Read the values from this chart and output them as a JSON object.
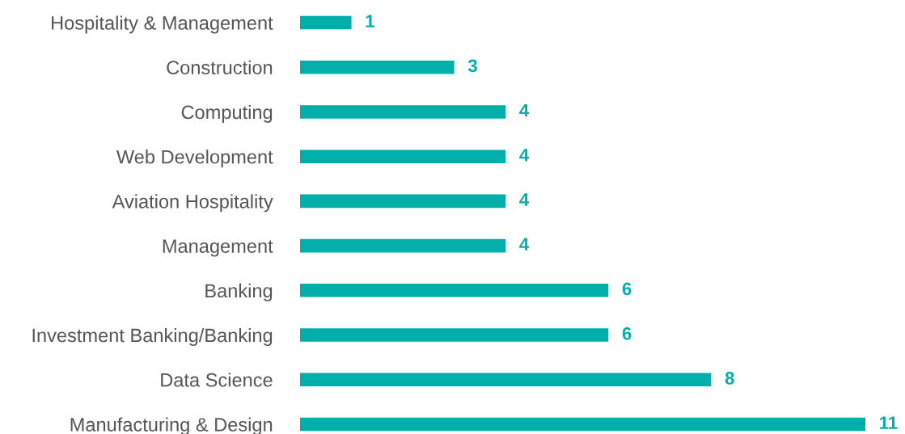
{
  "chart_data": {
    "type": "bar",
    "orientation": "horizontal",
    "categories": [
      "Hospitality & Management",
      "Construction",
      "Computing",
      "Web Development",
      "Aviation Hospitality",
      "Management",
      "Banking",
      "Investment Banking/Banking",
      "Data Science",
      "Manufacturing & Design"
    ],
    "values": [
      1,
      3,
      4,
      4,
      4,
      4,
      6,
      6,
      8,
      11
    ],
    "color": "#00aeaa",
    "data_labels": true,
    "grid": false,
    "legend": false,
    "tick_labels": "y"
  }
}
